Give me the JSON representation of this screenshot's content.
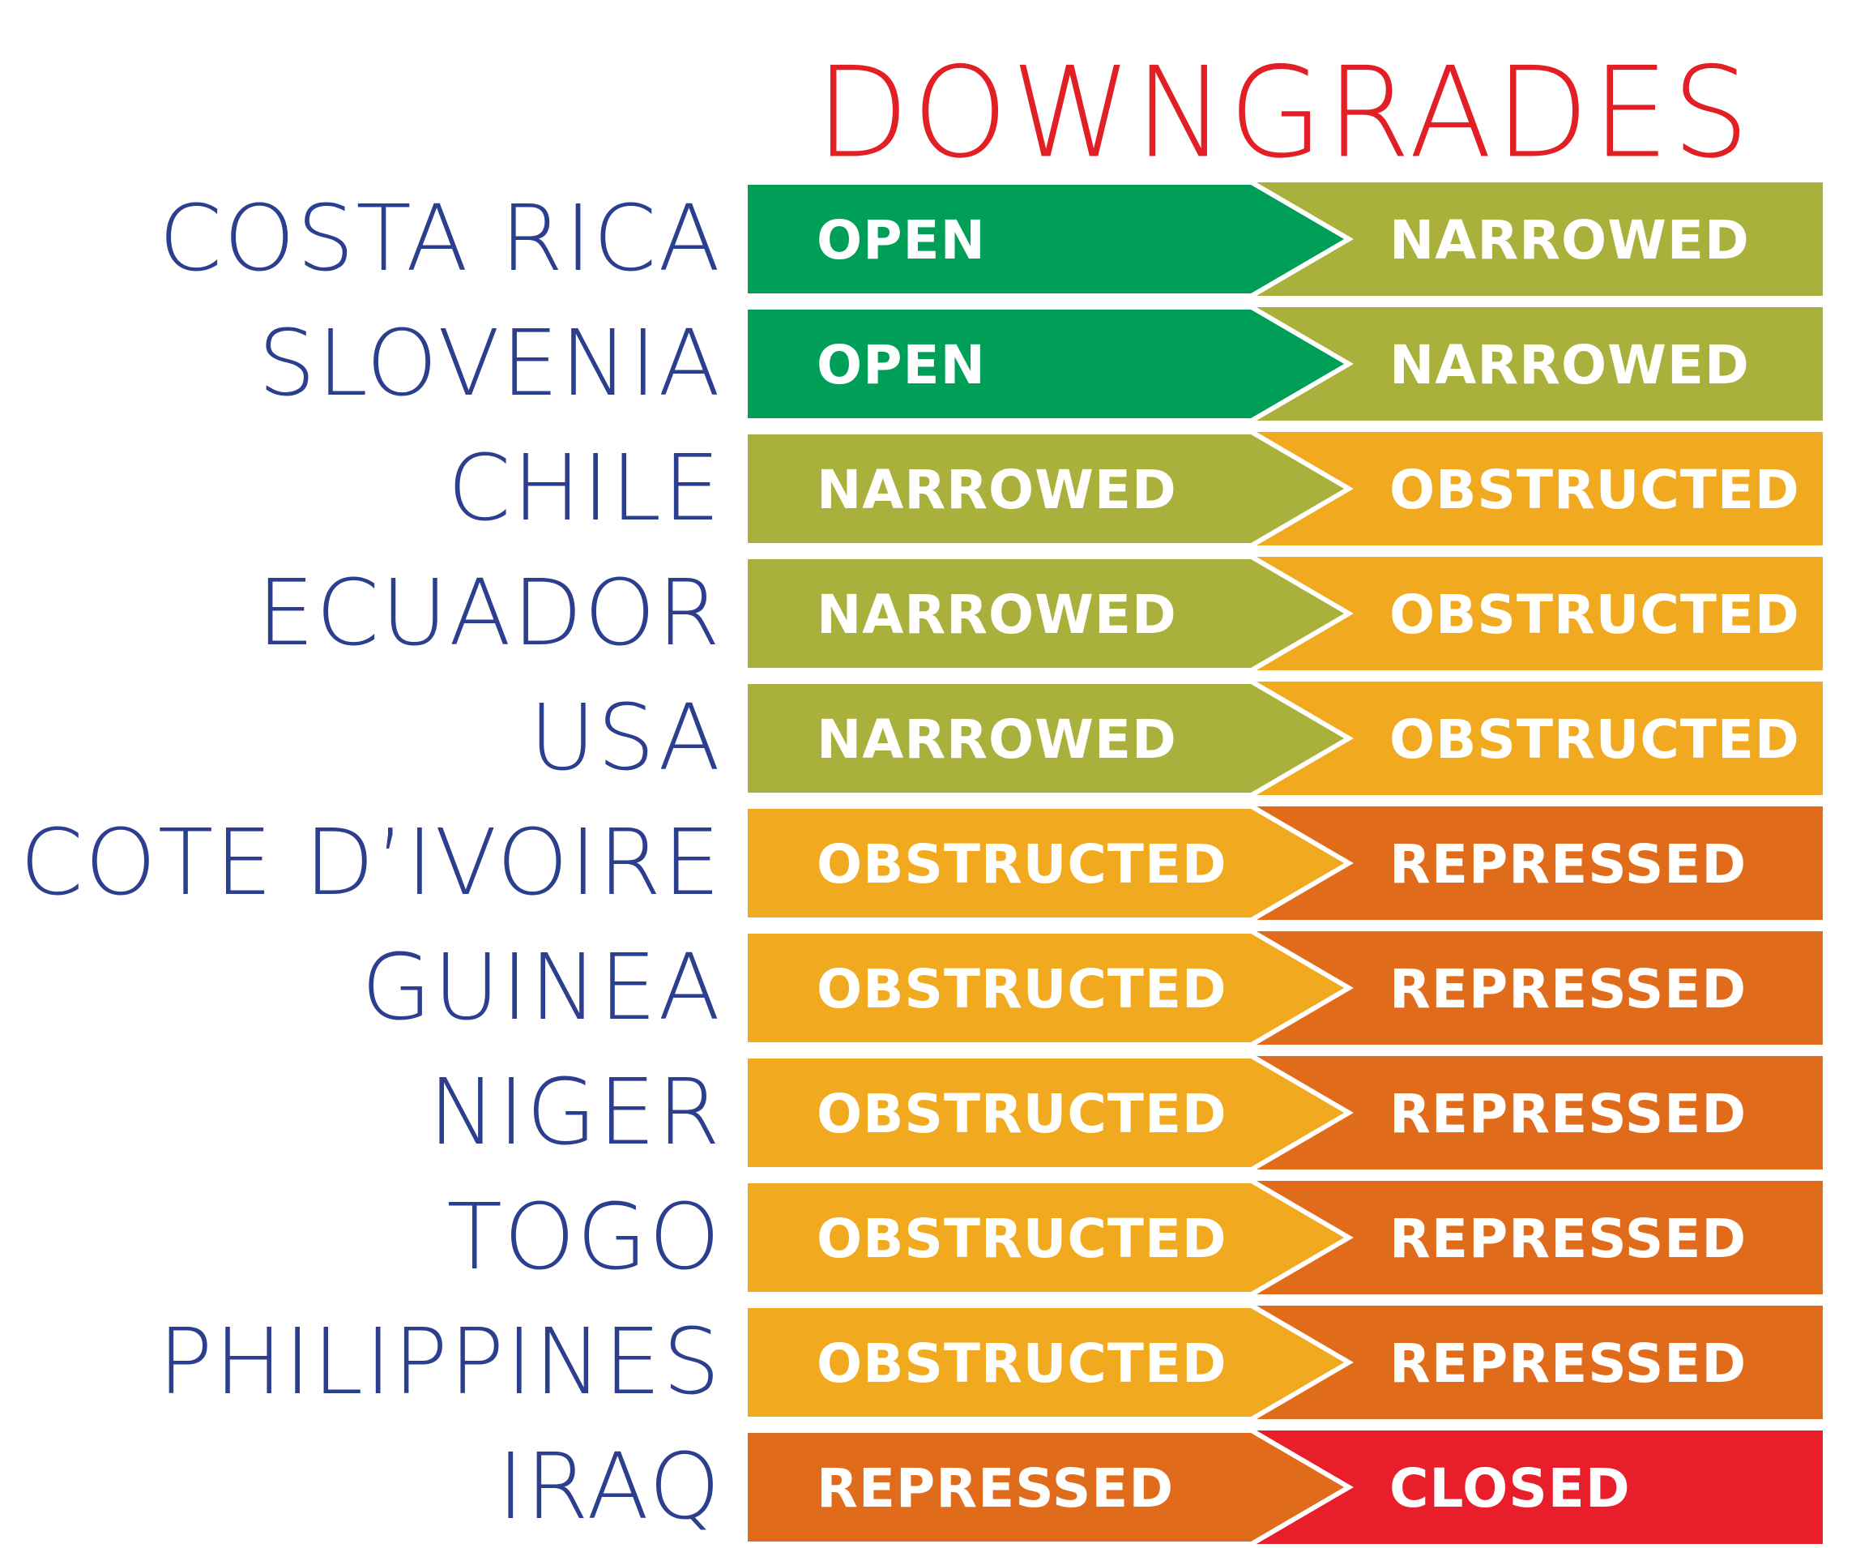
{
  "title": "DOWNGRADES",
  "colors": {
    "title": "#e31f26",
    "country_text": "#2b3f8e",
    "OPEN": "#009f58",
    "NARROWED": "#a9b13c",
    "OBSTRUCTED": "#f1aa1f",
    "REPRESSED": "#e06b1a",
    "CLOSED": "#e81e2a"
  },
  "rows": [
    {
      "country": "COSTA RICA",
      "from": "OPEN",
      "to": "NARROWED"
    },
    {
      "country": "SLOVENIA",
      "from": "OPEN",
      "to": "NARROWED"
    },
    {
      "country": "CHILE",
      "from": "NARROWED",
      "to": "OBSTRUCTED"
    },
    {
      "country": "ECUADOR",
      "from": "NARROWED",
      "to": "OBSTRUCTED"
    },
    {
      "country": "USA",
      "from": "NARROWED",
      "to": "OBSTRUCTED"
    },
    {
      "country": "COTE D’IVOIRE",
      "from": "OBSTRUCTED",
      "to": "REPRESSED"
    },
    {
      "country": "GUINEA",
      "from": "OBSTRUCTED",
      "to": "REPRESSED"
    },
    {
      "country": "NIGER",
      "from": "OBSTRUCTED",
      "to": "REPRESSED"
    },
    {
      "country": "TOGO",
      "from": "OBSTRUCTED",
      "to": "REPRESSED"
    },
    {
      "country": "PHILIPPINES",
      "from": "OBSTRUCTED",
      "to": "REPRESSED"
    },
    {
      "country": "IRAQ",
      "from": "REPRESSED",
      "to": "CLOSED"
    }
  ]
}
